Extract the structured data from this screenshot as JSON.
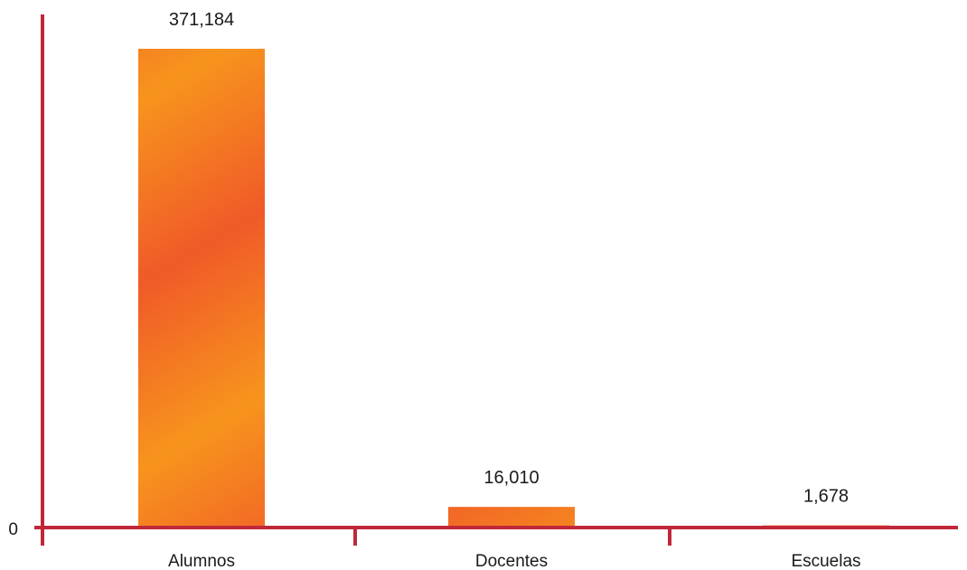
{
  "chart_data": {
    "type": "bar",
    "categories": [
      "Alumnos",
      "Docentes",
      "Escuelas"
    ],
    "values": [
      371184,
      16010,
      1678
    ],
    "data_labels": [
      "371,184",
      "16,010",
      "1,678"
    ],
    "y_tick_labels": [
      "0"
    ],
    "title": "",
    "xlabel": "",
    "ylabel": "",
    "ylim": [
      0,
      371184
    ],
    "grid": false,
    "legend": "none"
  },
  "colors": {
    "axis": "#c0283a",
    "bar_light": "#f7941d",
    "bar_dark": "#f05a28"
  }
}
